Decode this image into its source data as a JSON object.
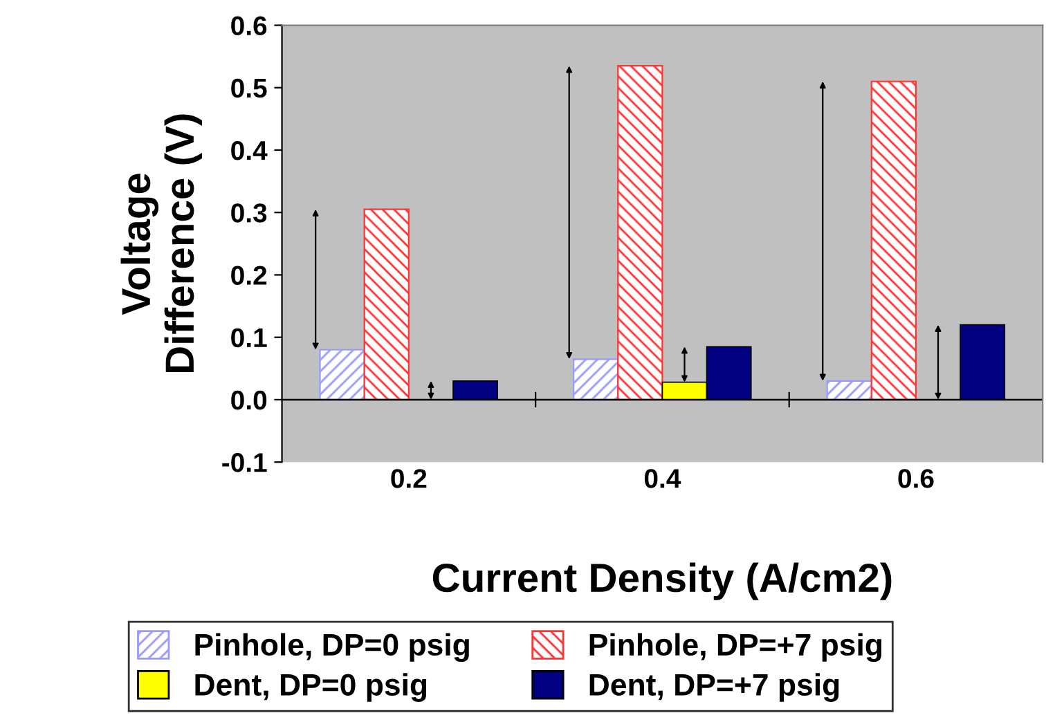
{
  "chart_data": {
    "type": "bar",
    "xlabel": "Current Density (A/cm2)",
    "ylabel": "Voltage Difference (V)",
    "categories": [
      "0.2",
      "0.4",
      "0.6"
    ],
    "series": [
      {
        "name": "Pinhole, DP=0 psig",
        "color": "#9999ff",
        "values": [
          0.08,
          0.065,
          0.03
        ]
      },
      {
        "name": "Pinhole, DP=+7 psig",
        "color": "#ff3333",
        "values": [
          0.305,
          0.535,
          0.51
        ]
      },
      {
        "name": "Dent, DP=0 psig",
        "color": "#ffff00",
        "values": [
          null,
          0.028,
          null
        ]
      },
      {
        "name": "Dent, DP=+7 psig",
        "color": "#000080",
        "values": [
          0.03,
          0.085,
          0.12
        ]
      }
    ],
    "ylim": [
      -0.1,
      0.6
    ],
    "yticks": [
      {
        "value": -0.1,
        "label": "-0.1"
      },
      {
        "value": 0,
        "label": "0.0"
      },
      0.1,
      0.2,
      0.3,
      0.4,
      0.5,
      0.6
    ],
    "ref_lines": [
      {
        "axis": "y",
        "value": 0,
        "color": "#000000"
      }
    ],
    "grid": false,
    "legend": "bottom"
  }
}
